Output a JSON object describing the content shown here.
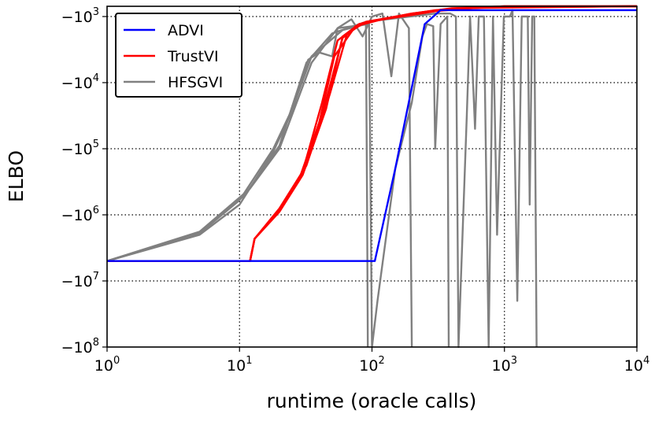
{
  "chart_data": {
    "type": "line",
    "title": "",
    "xlabel": "runtime (oracle calls)",
    "ylabel": "ELBO",
    "x_scale": "log",
    "y_scale": "symlog-negative",
    "xlim": [
      1,
      10000
    ],
    "ylim": [
      -100000000,
      -700
    ],
    "grid": true,
    "legend_position": "upper-left",
    "x_ticks": [
      {
        "value": 1,
        "base": "10",
        "exp": "0"
      },
      {
        "value": 10,
        "base": "10",
        "exp": "1"
      },
      {
        "value": 100,
        "base": "10",
        "exp": "2"
      },
      {
        "value": 1000,
        "base": "10",
        "exp": "3"
      },
      {
        "value": 10000,
        "base": "10",
        "exp": "4"
      }
    ],
    "y_ticks": [
      {
        "value": -1000,
        "base": "−10",
        "exp": "3"
      },
      {
        "value": -10000,
        "base": "−10",
        "exp": "4"
      },
      {
        "value": -100000,
        "base": "−10",
        "exp": "5"
      },
      {
        "value": -1000000,
        "base": "−10",
        "exp": "6"
      },
      {
        "value": -10000000,
        "base": "−10",
        "exp": "7"
      },
      {
        "value": -100000000,
        "base": "−10",
        "exp": "8"
      }
    ],
    "series": [
      {
        "name": "ADVI",
        "color": "#0000ff",
        "runs": [
          [
            [
              1,
              -5000000
            ],
            [
              105,
              -5000000
            ],
            [
              150,
              -200000
            ],
            [
              250,
              -1300
            ],
            [
              330,
              -800
            ],
            [
              10000,
              -800
            ]
          ]
        ]
      },
      {
        "name": "TrustVI",
        "color": "#ff0000",
        "runs": [
          [
            [
              1,
              -5000000
            ],
            [
              12,
              -5000000
            ],
            [
              13,
              -2300000
            ],
            [
              20,
              -900000
            ],
            [
              30,
              -250000
            ],
            [
              45,
              -25000
            ],
            [
              60,
              -2000
            ],
            [
              80,
              -1300
            ],
            [
              120,
              -1100
            ],
            [
              200,
              -900
            ],
            [
              400,
              -750
            ],
            [
              1000,
              -700
            ],
            [
              10000,
              -700
            ]
          ],
          [
            [
              1,
              -5000000
            ],
            [
              12,
              -5000000
            ],
            [
              13,
              -2300000
            ],
            [
              20,
              -800000
            ],
            [
              30,
              -220000
            ],
            [
              42,
              -20000
            ],
            [
              55,
              -2300
            ],
            [
              80,
              -1300
            ],
            [
              120,
              -1100
            ],
            [
              200,
              -900
            ],
            [
              400,
              -760
            ],
            [
              1000,
              -700
            ],
            [
              10000,
              -700
            ]
          ],
          [
            [
              1,
              -5000000
            ],
            [
              12,
              -5000000
            ],
            [
              13,
              -2300000
            ],
            [
              19,
              -1000000
            ],
            [
              28,
              -300000
            ],
            [
              40,
              -40000
            ],
            [
              52,
              -4000
            ],
            [
              75,
              -1400
            ],
            [
              120,
              -1100
            ],
            [
              200,
              -950
            ],
            [
              400,
              -760
            ],
            [
              1000,
              -720
            ],
            [
              10000,
              -700
            ]
          ],
          [
            [
              1,
              -5000000
            ],
            [
              12,
              -5000000
            ],
            [
              13,
              -2300000
            ],
            [
              21,
              -750000
            ],
            [
              32,
              -180000
            ],
            [
              48,
              -15000
            ],
            [
              65,
              -1800
            ],
            [
              90,
              -1200
            ],
            [
              150,
              -1000
            ],
            [
              300,
              -800
            ],
            [
              800,
              -720
            ],
            [
              10000,
              -700
            ]
          ],
          [
            [
              1,
              -5000000
            ],
            [
              12,
              -5000000
            ],
            [
              13,
              -2300000
            ],
            [
              20,
              -850000
            ],
            [
              31,
              -200000
            ],
            [
              44,
              -22000
            ],
            [
              60,
              -2100
            ],
            [
              85,
              -1250
            ],
            [
              140,
              -1050
            ],
            [
              260,
              -850
            ],
            [
              600,
              -740
            ],
            [
              10000,
              -700
            ]
          ]
        ]
      },
      {
        "name": "HFSGVI",
        "color": "#808080",
        "runs": [
          [
            [
              1,
              -5000000
            ],
            [
              5,
              -1900000
            ],
            [
              10,
              -600000
            ],
            [
              18,
              -100000
            ],
            [
              25,
              -25000
            ],
            [
              35,
              -4000
            ],
            [
              60,
              -1600
            ],
            [
              90,
              -1300
            ],
            [
              92,
              -1200000
            ],
            [
              93,
              -100000000
            ]
          ],
          [
            [
              1,
              -5000000
            ],
            [
              5,
              -2000000
            ],
            [
              10,
              -700000
            ],
            [
              18,
              -110000
            ],
            [
              25,
              -27000
            ],
            [
              33,
              -4500
            ],
            [
              40,
              -3500
            ],
            [
              50,
              -4000
            ],
            [
              55,
              -1500
            ],
            [
              70,
              -1100
            ],
            [
              85,
              -2000
            ],
            [
              100,
              -1000
            ],
            [
              120,
              -900
            ],
            [
              140,
              -8000
            ],
            [
              160,
              -900
            ],
            [
              190,
              -1500
            ],
            [
              200,
              -100000000
            ]
          ],
          [
            [
              1,
              -5000000
            ],
            [
              5,
              -1800000
            ],
            [
              12,
              -400000
            ],
            [
              20,
              -100000
            ],
            [
              35,
              -5000
            ],
            [
              55,
              -1500
            ],
            [
              95,
              -1300
            ],
            [
              100,
              -100000000
            ],
            [
              110,
              -20000000
            ],
            [
              150,
              -200000
            ],
            [
              200,
              -20000
            ],
            [
              240,
              -2000
            ],
            [
              260,
              -1300
            ],
            [
              290,
              -1400
            ],
            [
              300,
              -100000
            ],
            [
              330,
              -1300
            ],
            [
              370,
              -1000
            ],
            [
              380,
              -100000000
            ]
          ],
          [
            [
              1,
              -5000000
            ],
            [
              5,
              -1900000
            ],
            [
              11,
              -500000
            ],
            [
              20,
              -90000
            ],
            [
              32,
              -5000
            ],
            [
              50,
              -1800
            ],
            [
              90,
              -1200
            ],
            [
              300,
              -900
            ],
            [
              390,
              -900
            ],
            [
              430,
              -1000
            ],
            [
              450,
              -100000000
            ],
            [
              520,
              -30000
            ],
            [
              550,
              -1000
            ],
            [
              580,
              -10000
            ],
            [
              600,
              -50000
            ],
            [
              640,
              -1000
            ],
            [
              700,
              -1000
            ],
            [
              760,
              -100000000
            ],
            [
              820,
              -1000
            ],
            [
              880,
              -2000000
            ],
            [
              920,
              -100000
            ],
            [
              990,
              -1000
            ],
            [
              1100,
              -1000
            ],
            [
              1150,
              -800
            ],
            [
              1250,
              -20000000
            ],
            [
              1350,
              -1000
            ],
            [
              1500,
              -1000
            ],
            [
              1550,
              -700000
            ],
            [
              1620,
              -1000
            ],
            [
              1680,
              -1000
            ],
            [
              1750,
              -100000000
            ]
          ]
        ]
      }
    ]
  }
}
